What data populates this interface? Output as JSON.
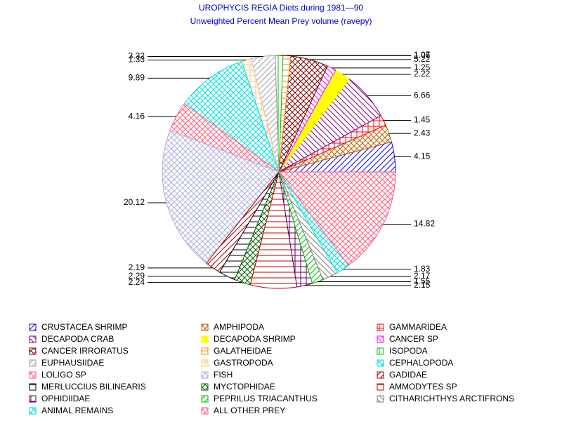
{
  "chart_data": {
    "type": "pie",
    "title": "UROPHYCIS REGIA Diets during 1981—90",
    "subtitle": "Unweighted Percent Mean Prey volume (ravepy)",
    "categories": [
      "CRUSTACEA SHRIMP",
      "AMPHIPODA",
      "GAMMARIDEA",
      "DECAPODA CRAB",
      "DECAPODA SHRIMP",
      "CANCER SP",
      "CANCER IRRORATUS",
      "GALATHEIDAE",
      "ISOPODA",
      "EUPHAUSIIDAE",
      "GASTROPODA",
      "CEPHALOPODA",
      "LOLIGO SP",
      "FISH",
      "GADIDAE",
      "MERLUCCIUS BILINEARIS",
      "MYCTOPHIDAE",
      "AMMODYTES SP",
      "OPHIDIIDAE",
      "PEPRILUS TRIACANTHUS",
      "CITHARICHTHYS ARCTIFRONS",
      "ANIMAL REMAINS",
      "ALL OTHER PREY"
    ],
    "values": [
      4.15,
      2.43,
      1.45,
      6.66,
      2.22,
      1.25,
      5.22,
      1.06,
      1.07,
      3.32,
      1.33,
      9.89,
      4.16,
      20.12,
      2.19,
      2.29,
      2.24,
      6.43,
      2.15,
      1.55,
      2.17,
      1.83,
      14.82
    ],
    "value_labels": [
      "4.15",
      "2.43",
      "1.45",
      "6.66",
      "2.22",
      "1.25",
      "5.22",
      "1.06",
      "1.07",
      "3.32",
      "1.33",
      "9.89",
      "4.16",
      "20.12",
      "2.19",
      "2.29",
      "2.24",
      null,
      "2.15",
      "1.55",
      "2.17",
      "1.83",
      "14.82"
    ],
    "colors": [
      "#0000ff",
      "#c06000",
      "#ff0000",
      "#800080",
      "#ffff00",
      "#ff00ff",
      "#800000",
      "#ff8000",
      "#00c000",
      "#a0a0a0",
      "#ffc080",
      "#00e0e0",
      "#ff6080",
      "#b0b0e0",
      "#a00000",
      "#000000",
      "#006000",
      "#c00000",
      "#600060",
      "#00c000",
      "#808080",
      "#00e0e0",
      "#ff6080"
    ]
  }
}
